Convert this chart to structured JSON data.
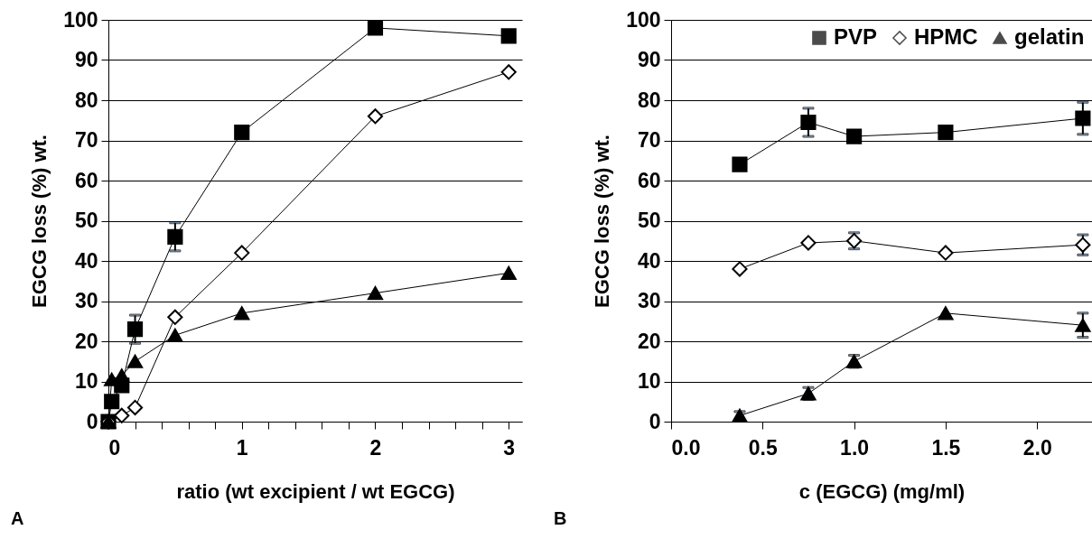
{
  "chart_data": [
    {
      "type": "line",
      "xlabel": "ratio (wt excipient / wt EGCG)",
      "ylabel": "EGCG loss (%) wt.",
      "annotations": [
        "A"
      ],
      "xlim": [
        0,
        3.1
      ],
      "ylim": [
        0,
        100
      ],
      "xticks": [
        0,
        {
          "value": 0.2,
          "label": null
        },
        {
          "value": 0.4,
          "label": null
        },
        {
          "value": 0.6,
          "label": null
        },
        {
          "value": 0.8,
          "label": null
        },
        1,
        {
          "value": 1.2,
          "label": null
        },
        {
          "value": 1.4,
          "label": null
        },
        {
          "value": 1.6,
          "label": null
        },
        {
          "value": 1.8,
          "label": null
        },
        2,
        {
          "value": 2.2,
          "label": null
        },
        {
          "value": 2.4,
          "label": null
        },
        {
          "value": 2.6,
          "label": null
        },
        {
          "value": 2.8,
          "label": null
        },
        3
      ],
      "yticks": [
        0,
        10,
        20,
        30,
        40,
        50,
        60,
        70,
        80,
        90,
        100
      ],
      "grid": "y",
      "series": [
        {
          "color": "#000000",
          "marker": "square",
          "x": [
            0,
            0.025,
            0.1,
            0.2,
            0.5,
            1,
            2,
            3
          ],
          "values": [
            0,
            5,
            9,
            23,
            46,
            72,
            98,
            96
          ],
          "errors": [
            null,
            null,
            null,
            3.5,
            3.5,
            null,
            null,
            null
          ]
        },
        {
          "color": "#000000",
          "marker": "diamond",
          "x": [
            0,
            0.1,
            0.2,
            0.5,
            1,
            2,
            3
          ],
          "values": [
            0,
            1.5,
            3.5,
            26,
            42,
            76,
            87
          ]
        },
        {
          "color": "#000000",
          "marker": "triangle",
          "x": [
            0,
            0.025,
            0.1,
            0.2,
            0.5,
            1,
            2,
            3
          ],
          "values": [
            0,
            10.5,
            11.5,
            15,
            21.5,
            27,
            32,
            37
          ]
        }
      ]
    },
    {
      "type": "line",
      "xlabel": "c (EGCG) (mg/ml)",
      "ylabel": "EGCG loss (%) wt.",
      "annotations": [
        "B"
      ],
      "xlim": [
        0,
        2.3
      ],
      "ylim": [
        0,
        100
      ],
      "xticks": [
        {
          "value": 0,
          "label": "0.0"
        },
        {
          "value": 0.5,
          "label": "0.5"
        },
        {
          "value": 1,
          "label": "1.0"
        },
        {
          "value": 1.5,
          "label": "1.5"
        },
        {
          "value": 2,
          "label": "2.0"
        }
      ],
      "yticks": [
        0,
        10,
        20,
        30,
        40,
        50,
        60,
        70,
        80,
        90,
        100
      ],
      "grid": "y",
      "legend": "top",
      "series": [
        {
          "name": "PVP",
          "color": "#000000",
          "marker": "square",
          "x": [
            0.375,
            0.75,
            1,
            1.5,
            2.25
          ],
          "values": [
            64,
            74.5,
            71,
            72,
            75.5
          ],
          "errors": [
            null,
            3.5,
            null,
            null,
            4
          ]
        },
        {
          "name": "HPMC",
          "color": "#000000",
          "marker": "diamond",
          "x": [
            0.375,
            0.75,
            1,
            1.5,
            2.25
          ],
          "values": [
            38,
            44.5,
            45,
            42,
            44
          ],
          "errors": [
            null,
            null,
            2,
            null,
            2.5
          ]
        },
        {
          "name": "gelatin",
          "color": "#000000",
          "marker": "triangle",
          "x": [
            0.375,
            0.75,
            1,
            1.5,
            2.25
          ],
          "values": [
            1.5,
            7,
            15,
            27,
            24
          ],
          "errors": [
            1,
            1.5,
            1.5,
            null,
            3
          ]
        }
      ]
    }
  ]
}
